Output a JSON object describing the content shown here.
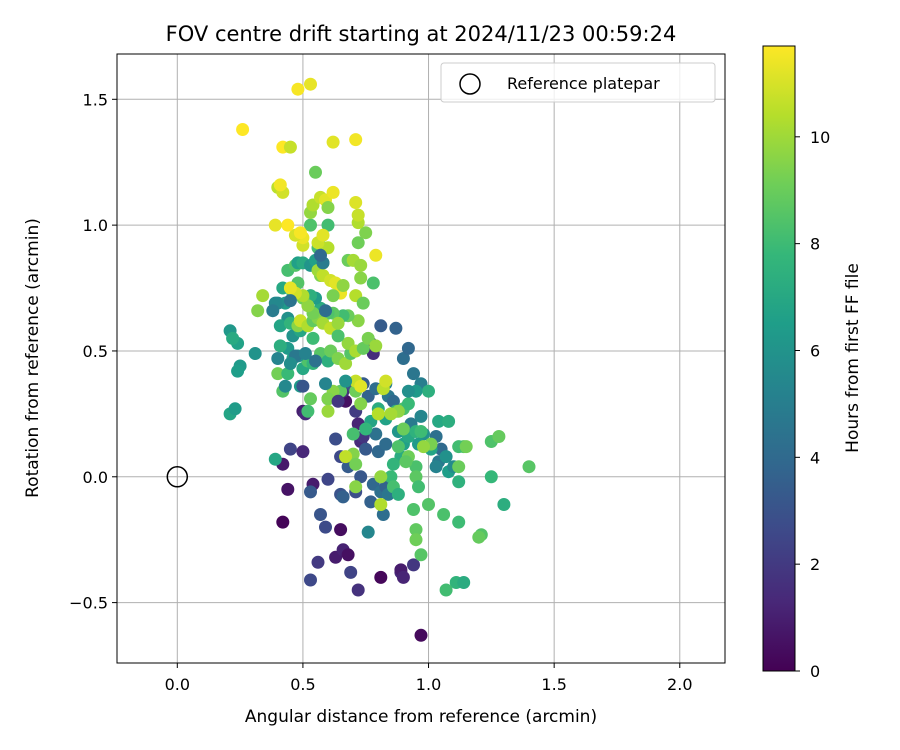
{
  "chart_data": {
    "type": "scatter",
    "title": "FOV centre drift starting at 2024/11/23 00:59:24",
    "xlabel": "Angular distance from reference (arcmin)",
    "ylabel": "Rotation from reference (arcmin)",
    "xlim": [
      -0.24,
      2.18
    ],
    "ylim": [
      -0.74,
      1.68
    ],
    "xticks": [
      0.0,
      0.5,
      1.0,
      1.5,
      2.0
    ],
    "xtick_labels": [
      "0.0",
      "0.5",
      "1.0",
      "1.5",
      "2.0"
    ],
    "yticks": [
      -0.5,
      0.0,
      0.5,
      1.0,
      1.5
    ],
    "ytick_labels": [
      "−0.5",
      "0.0",
      "0.5",
      "1.0",
      "1.5"
    ],
    "grid": true,
    "legend": {
      "location": "upper right",
      "entries": [
        "Reference platepar"
      ]
    },
    "reference_point": {
      "x": 0.0,
      "y": 0.0,
      "marker": "open-circle",
      "color": "#000000"
    },
    "colorbar": {
      "label": "Hours from first FF file",
      "range": [
        0,
        11.7
      ],
      "ticks": [
        0,
        2,
        4,
        6,
        8,
        10
      ],
      "tick_labels": [
        "0",
        "2",
        "4",
        "6",
        "8",
        "10"
      ],
      "colormap": "viridis",
      "colors": [
        "#440154",
        "#482878",
        "#3e4989",
        "#31688e",
        "#26828e",
        "#1f9e89",
        "#35b779",
        "#6ece58",
        "#b5de2b",
        "#fde725"
      ]
    },
    "points": [
      [
        0.97,
        -0.63,
        0.3
      ],
      [
        0.53,
        -0.41,
        2.6
      ],
      [
        0.72,
        -0.45,
        1.7
      ],
      [
        0.69,
        -0.38,
        2.4
      ],
      [
        0.81,
        -0.4,
        0.2
      ],
      [
        0.89,
        -0.38,
        1.5
      ],
      [
        0.56,
        -0.34,
        2.0
      ],
      [
        0.63,
        -0.32,
        0.9
      ],
      [
        0.66,
        -0.29,
        1.1
      ],
      [
        0.68,
        -0.31,
        0.5
      ],
      [
        0.59,
        -0.2,
        2.7
      ],
      [
        0.65,
        -0.21,
        0.4
      ],
      [
        0.57,
        -0.15,
        3.1
      ],
      [
        0.42,
        -0.18,
        0.1
      ],
      [
        0.44,
        -0.05,
        0.6
      ],
      [
        0.54,
        -0.03,
        0.9
      ],
      [
        0.53,
        -0.06,
        3.3
      ],
      [
        0.6,
        -0.01,
        2.5
      ],
      [
        0.65,
        -0.07,
        3.0
      ],
      [
        0.66,
        -0.08,
        3.6
      ],
      [
        0.71,
        -0.06,
        2.8
      ],
      [
        0.73,
        0.0,
        3.2
      ],
      [
        0.77,
        -0.1,
        3.6
      ],
      [
        0.78,
        -0.03,
        3.9
      ],
      [
        0.81,
        -0.06,
        4.3
      ],
      [
        0.83,
        -0.04,
        3.7
      ],
      [
        0.84,
        -0.07,
        4.6
      ],
      [
        0.89,
        -0.37,
        0.9
      ],
      [
        0.9,
        -0.4,
        1.2
      ],
      [
        0.94,
        -0.35,
        1.9
      ],
      [
        0.82,
        -0.15,
        4.2
      ],
      [
        0.76,
        -0.22,
        5.4
      ],
      [
        0.42,
        0.05,
        0.8
      ],
      [
        0.45,
        0.11,
        2.4
      ],
      [
        0.5,
        0.1,
        1.3
      ],
      [
        0.65,
        0.08,
        2.6
      ],
      [
        0.68,
        0.04,
        3.4
      ],
      [
        0.73,
        0.14,
        1.4
      ],
      [
        0.63,
        0.15,
        2.8
      ],
      [
        0.74,
        0.16,
        1.8
      ],
      [
        0.75,
        0.11,
        3.3
      ],
      [
        0.8,
        0.1,
        3.9
      ],
      [
        0.83,
        0.13,
        4.1
      ],
      [
        0.79,
        0.17,
        4.4
      ],
      [
        0.5,
        0.26,
        1.0
      ],
      [
        0.51,
        0.25,
        1.4
      ],
      [
        0.67,
        0.3,
        0.5
      ],
      [
        0.66,
        0.34,
        1.6
      ],
      [
        0.71,
        0.26,
        2.1
      ],
      [
        0.72,
        0.21,
        1.2
      ],
      [
        0.6,
        0.31,
        4.8
      ],
      [
        0.63,
        0.31,
        4.5
      ],
      [
        0.7,
        0.36,
        3.0
      ],
      [
        0.74,
        0.37,
        3.4
      ],
      [
        0.76,
        0.32,
        3.7
      ],
      [
        0.79,
        0.35,
        4.2
      ],
      [
        0.83,
        0.37,
        5.1
      ],
      [
        0.84,
        0.32,
        4.6
      ],
      [
        0.86,
        0.3,
        4.0
      ],
      [
        0.78,
        0.49,
        1.5
      ],
      [
        0.77,
        0.53,
        2.5
      ],
      [
        0.81,
        0.6,
        3.4
      ],
      [
        0.87,
        0.59,
        3.7
      ],
      [
        0.9,
        0.47,
        4.2
      ],
      [
        0.92,
        0.51,
        3.9
      ],
      [
        0.94,
        0.41,
        4.6
      ],
      [
        0.97,
        0.37,
        5.0
      ],
      [
        1.03,
        0.16,
        4.3
      ],
      [
        1.05,
        0.11,
        4.0
      ],
      [
        1.04,
        0.06,
        4.7
      ],
      [
        1.03,
        0.04,
        5.2
      ],
      [
        1.07,
        0.08,
        5.9
      ],
      [
        1.08,
        0.02,
        6.5
      ],
      [
        1.1,
        0.04,
        5.6
      ],
      [
        1.12,
        -0.02,
        7.5
      ],
      [
        0.93,
        0.21,
        4.8
      ],
      [
        0.97,
        0.24,
        5.4
      ],
      [
        0.98,
        0.17,
        5.9
      ],
      [
        0.96,
        0.13,
        6.3
      ],
      [
        1.01,
        0.11,
        6.8
      ],
      [
        0.88,
        0.18,
        6.1
      ],
      [
        0.9,
        0.13,
        6.6
      ],
      [
        0.92,
        0.16,
        7.0
      ],
      [
        0.89,
        0.08,
        7.2
      ],
      [
        0.86,
        0.05,
        7.6
      ],
      [
        0.85,
        0.0,
        7.9
      ],
      [
        0.86,
        -0.04,
        8.2
      ],
      [
        0.88,
        -0.07,
        7.4
      ],
      [
        0.95,
        0.04,
        8.3
      ],
      [
        0.95,
        0.0,
        8.7
      ],
      [
        0.96,
        -0.04,
        8.1
      ],
      [
        0.94,
        -0.13,
        8.4
      ],
      [
        0.95,
        -0.21,
        8.8
      ],
      [
        0.95,
        -0.25,
        9.1
      ],
      [
        0.97,
        -0.31,
        8.6
      ],
      [
        1.0,
        -0.11,
        8.5
      ],
      [
        1.06,
        -0.15,
        8.3
      ],
      [
        1.12,
        -0.18,
        8.0
      ],
      [
        1.11,
        -0.42,
        7.6
      ],
      [
        1.14,
        -0.42,
        7.2
      ],
      [
        1.07,
        -0.45,
        8.1
      ],
      [
        1.21,
        -0.23,
        8.5
      ],
      [
        1.2,
        -0.24,
        8.9
      ],
      [
        1.3,
        -0.11,
        7.3
      ],
      [
        1.25,
        0.0,
        7.8
      ],
      [
        1.4,
        0.04,
        8.6
      ],
      [
        1.12,
        0.04,
        9.0
      ],
      [
        1.14,
        0.12,
        8.6
      ],
      [
        1.12,
        0.12,
        8.1
      ],
      [
        1.15,
        0.12,
        9.2
      ],
      [
        1.25,
        0.14,
        8.4
      ],
      [
        1.28,
        0.16,
        8.9
      ],
      [
        1.01,
        0.13,
        9.3
      ],
      [
        0.98,
        0.12,
        9.8
      ],
      [
        0.92,
        0.08,
        9.1
      ],
      [
        0.91,
        0.06,
        8.7
      ],
      [
        0.88,
        0.12,
        8.4
      ],
      [
        0.9,
        0.19,
        9.0
      ],
      [
        0.87,
        0.26,
        7.8
      ],
      [
        0.9,
        0.27,
        8.3
      ],
      [
        0.92,
        0.29,
        7.9
      ],
      [
        0.95,
        0.18,
        7.5
      ],
      [
        0.97,
        0.18,
        8.0
      ],
      [
        1.0,
        0.34,
        7.4
      ],
      [
        1.04,
        0.22,
        7.0
      ],
      [
        1.08,
        0.22,
        7.3
      ],
      [
        0.95,
        0.34,
        6.3
      ],
      [
        0.92,
        0.34,
        5.8
      ],
      [
        0.83,
        0.23,
        6.7
      ],
      [
        0.8,
        0.27,
        7.2
      ],
      [
        0.77,
        0.22,
        6.8
      ],
      [
        0.75,
        0.19,
        7.7
      ],
      [
        0.7,
        0.17,
        8.2
      ],
      [
        0.7,
        0.09,
        9.5
      ],
      [
        0.67,
        0.08,
        10.6
      ],
      [
        0.71,
        0.05,
        9.2
      ],
      [
        0.71,
        -0.04,
        9.6
      ],
      [
        0.81,
        -0.11,
        10.3
      ],
      [
        0.81,
        0.0,
        9.8
      ],
      [
        0.88,
        0.26,
        9.7
      ],
      [
        0.85,
        0.25,
        10.1
      ],
      [
        0.8,
        0.25,
        10.4
      ],
      [
        0.73,
        0.29,
        9.5
      ],
      [
        0.71,
        0.34,
        9.1
      ],
      [
        0.82,
        0.35,
        10.5
      ],
      [
        0.83,
        0.38,
        10.9
      ],
      [
        0.71,
        0.38,
        10.7
      ],
      [
        0.73,
        0.36,
        11.2
      ],
      [
        0.65,
        0.34,
        8.8
      ],
      [
        0.62,
        0.34,
        9.6
      ],
      [
        0.6,
        0.26,
        9.9
      ],
      [
        0.6,
        0.31,
        9.4
      ],
      [
        0.53,
        0.31,
        8.9
      ],
      [
        0.52,
        0.26,
        8.1
      ],
      [
        0.4,
        0.41,
        9.2
      ],
      [
        0.42,
        0.34,
        8.5
      ],
      [
        0.44,
        0.41,
        7.9
      ],
      [
        0.49,
        0.36,
        6.3
      ],
      [
        0.5,
        0.43,
        7.0
      ],
      [
        0.52,
        0.46,
        8.4
      ],
      [
        0.54,
        0.45,
        7.7
      ],
      [
        0.46,
        0.47,
        6.7
      ],
      [
        0.48,
        0.48,
        5.8
      ],
      [
        0.43,
        0.36,
        5.5
      ],
      [
        0.44,
        0.51,
        6.3
      ],
      [
        0.41,
        0.52,
        7.3
      ],
      [
        0.46,
        0.56,
        6.0
      ],
      [
        0.49,
        0.58,
        6.9
      ],
      [
        0.47,
        0.48,
        4.7
      ],
      [
        0.51,
        0.49,
        5.2
      ],
      [
        0.54,
        0.55,
        8.0
      ],
      [
        0.57,
        0.49,
        8.6
      ],
      [
        0.6,
        0.46,
        7.4
      ],
      [
        0.61,
        0.5,
        9.0
      ],
      [
        0.64,
        0.47,
        9.4
      ],
      [
        0.67,
        0.45,
        10.0
      ],
      [
        0.69,
        0.49,
        8.5
      ],
      [
        0.68,
        0.53,
        9.8
      ],
      [
        0.71,
        0.5,
        10.2
      ],
      [
        0.74,
        0.51,
        8.9
      ],
      [
        0.76,
        0.55,
        9.3
      ],
      [
        0.79,
        0.52,
        9.9
      ],
      [
        0.72,
        0.62,
        9.6
      ],
      [
        0.68,
        0.64,
        9.0
      ],
      [
        0.66,
        0.64,
        8.1
      ],
      [
        0.62,
        0.65,
        8.7
      ],
      [
        0.6,
        0.65,
        8.4
      ],
      [
        0.57,
        0.67,
        7.2
      ],
      [
        0.55,
        0.71,
        6.4
      ],
      [
        0.53,
        0.72,
        7.4
      ],
      [
        0.5,
        0.71,
        9.1
      ],
      [
        0.48,
        0.77,
        8.5
      ],
      [
        0.46,
        0.73,
        8.0
      ],
      [
        0.42,
        0.75,
        7.0
      ],
      [
        0.43,
        0.69,
        6.4
      ],
      [
        0.4,
        0.69,
        5.6
      ],
      [
        0.44,
        0.63,
        5.9
      ],
      [
        0.41,
        0.6,
        6.8
      ],
      [
        0.45,
        0.61,
        7.6
      ],
      [
        0.48,
        0.6,
        9.6
      ],
      [
        0.49,
        0.62,
        10.8
      ],
      [
        0.52,
        0.6,
        10.3
      ],
      [
        0.54,
        0.62,
        8.8
      ],
      [
        0.56,
        0.63,
        9.5
      ],
      [
        0.58,
        0.61,
        10.1
      ],
      [
        0.61,
        0.59,
        10.6
      ],
      [
        0.64,
        0.56,
        8.3
      ],
      [
        0.64,
        0.61,
        9.9
      ],
      [
        0.54,
        0.65,
        9.2
      ],
      [
        0.52,
        0.68,
        9.7
      ],
      [
        0.5,
        0.72,
        10.3
      ],
      [
        0.47,
        0.73,
        10.9
      ],
      [
        0.45,
        0.75,
        11.3
      ],
      [
        0.44,
        0.82,
        8.2
      ],
      [
        0.47,
        0.84,
        8.5
      ],
      [
        0.48,
        0.85,
        6.6
      ],
      [
        0.5,
        0.85,
        7.1
      ],
      [
        0.53,
        0.84,
        6.1
      ],
      [
        0.55,
        0.86,
        6.6
      ],
      [
        0.58,
        0.85,
        8.8
      ],
      [
        0.57,
        0.8,
        9.4
      ],
      [
        0.56,
        0.82,
        10.0
      ],
      [
        0.58,
        0.8,
        10.6
      ],
      [
        0.61,
        0.78,
        10.9
      ],
      [
        0.63,
        0.77,
        11.2
      ],
      [
        0.65,
        0.73,
        11.4
      ],
      [
        0.62,
        0.72,
        9.3
      ],
      [
        0.66,
        0.76,
        9.7
      ],
      [
        0.68,
        0.86,
        9.0
      ],
      [
        0.7,
        0.86,
        10.1
      ],
      [
        0.71,
        0.72,
        10.4
      ],
      [
        0.73,
        0.79,
        9.6
      ],
      [
        0.74,
        0.69,
        9.0
      ],
      [
        0.78,
        0.77,
        8.3
      ],
      [
        0.73,
        0.84,
        9.9
      ],
      [
        0.79,
        0.88,
        11.4
      ],
      [
        0.72,
        0.93,
        9.1
      ],
      [
        0.75,
        0.97,
        9.4
      ],
      [
        0.72,
        1.01,
        10.3
      ],
      [
        0.72,
        1.04,
        10.7
      ],
      [
        0.71,
        1.09,
        11.1
      ],
      [
        0.6,
        1.0,
        8.1
      ],
      [
        0.53,
        1.0,
        8.4
      ],
      [
        0.56,
        0.91,
        8.2
      ],
      [
        0.58,
        0.91,
        9.2
      ],
      [
        0.6,
        0.91,
        10.4
      ],
      [
        0.56,
        0.93,
        10.8
      ],
      [
        0.58,
        0.96,
        11.2
      ],
      [
        0.5,
        0.92,
        10.9
      ],
      [
        0.5,
        0.95,
        11.4
      ],
      [
        0.47,
        0.96,
        11.0
      ],
      [
        0.49,
        0.97,
        11.6
      ],
      [
        0.44,
        1.0,
        11.8
      ],
      [
        0.39,
        1.0,
        11.3
      ],
      [
        0.53,
        1.05,
        9.8
      ],
      [
        0.54,
        1.08,
        10.3
      ],
      [
        0.57,
        1.11,
        10.7
      ],
      [
        0.59,
        1.1,
        11.2
      ],
      [
        0.6,
        1.07,
        9.5
      ],
      [
        0.62,
        1.13,
        11.4
      ],
      [
        0.4,
        1.15,
        10.5
      ],
      [
        0.42,
        1.13,
        10.9
      ],
      [
        0.41,
        1.16,
        11.5
      ],
      [
        0.55,
        1.21,
        9.0
      ],
      [
        0.42,
        1.31,
        11.7
      ],
      [
        0.45,
        1.31,
        10.7
      ],
      [
        0.62,
        1.33,
        11.2
      ],
      [
        0.71,
        1.34,
        11.5
      ],
      [
        0.26,
        1.38,
        11.7
      ],
      [
        0.48,
        1.54,
        11.6
      ],
      [
        0.53,
        1.56,
        11.3
      ],
      [
        0.32,
        0.66,
        9.5
      ],
      [
        0.34,
        0.72,
        10.1
      ],
      [
        0.39,
        0.69,
        5.5
      ],
      [
        0.21,
        0.58,
        6.2
      ],
      [
        0.24,
        0.53,
        6.7
      ],
      [
        0.22,
        0.55,
        7.1
      ],
      [
        0.31,
        0.49,
        6.0
      ],
      [
        0.25,
        0.44,
        6.3
      ],
      [
        0.24,
        0.42,
        6.5
      ],
      [
        0.21,
        0.25,
        6.8
      ],
      [
        0.23,
        0.27,
        6.4
      ],
      [
        0.39,
        0.07,
        6.9
      ],
      [
        0.38,
        0.66,
        4.9
      ],
      [
        0.4,
        0.47,
        5.3
      ],
      [
        0.45,
        0.7,
        4.5
      ],
      [
        0.59,
        0.66,
        4.2
      ],
      [
        0.58,
        0.85,
        4.9
      ],
      [
        0.57,
        0.88,
        4.0
      ],
      [
        0.5,
        0.36,
        3.1
      ],
      [
        0.45,
        0.45,
        5.7
      ],
      [
        0.59,
        0.37,
        5.3
      ],
      [
        0.67,
        0.38,
        6.0
      ],
      [
        0.55,
        0.46,
        4.4
      ],
      [
        0.64,
        0.3,
        1.9
      ]
    ]
  }
}
